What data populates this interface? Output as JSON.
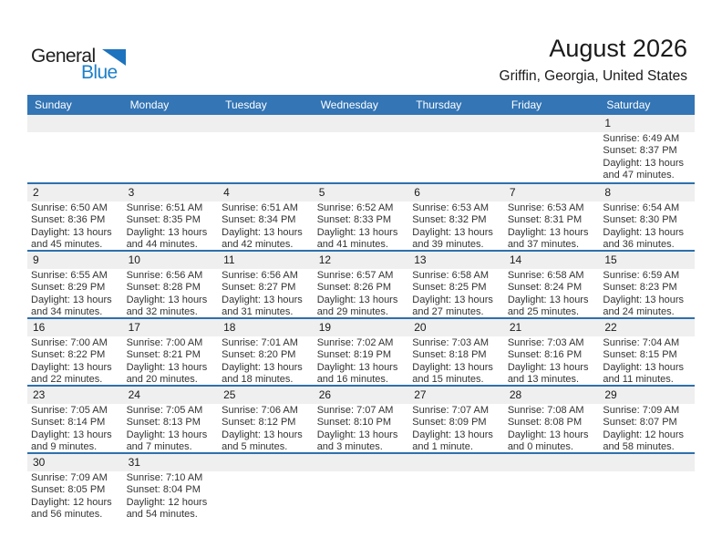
{
  "logo": {
    "general": "General",
    "blue": "Blue"
  },
  "title": "August 2026",
  "subtitle": "Griffin, Georgia, United States",
  "weekday_names": [
    "Sunday",
    "Monday",
    "Tuesday",
    "Wednesday",
    "Thursday",
    "Friday",
    "Saturday"
  ],
  "colors": {
    "header_bg": "#3375b5",
    "week_line": "#2d70ad",
    "day_band": "#efefef",
    "logo_triangle_blue": "#1e73be",
    "logo_text_blue": "#1d80c9"
  },
  "weeks": [
    [
      null,
      null,
      null,
      null,
      null,
      null,
      {
        "day": "1",
        "sunrise": "Sunrise: 6:49 AM",
        "sunset": "Sunset: 8:37 PM",
        "daylight": "Daylight: 13 hours and 47 minutes."
      }
    ],
    [
      {
        "day": "2",
        "sunrise": "Sunrise: 6:50 AM",
        "sunset": "Sunset: 8:36 PM",
        "daylight": "Daylight: 13 hours and 45 minutes."
      },
      {
        "day": "3",
        "sunrise": "Sunrise: 6:51 AM",
        "sunset": "Sunset: 8:35 PM",
        "daylight": "Daylight: 13 hours and 44 minutes."
      },
      {
        "day": "4",
        "sunrise": "Sunrise: 6:51 AM",
        "sunset": "Sunset: 8:34 PM",
        "daylight": "Daylight: 13 hours and 42 minutes."
      },
      {
        "day": "5",
        "sunrise": "Sunrise: 6:52 AM",
        "sunset": "Sunset: 8:33 PM",
        "daylight": "Daylight: 13 hours and 41 minutes."
      },
      {
        "day": "6",
        "sunrise": "Sunrise: 6:53 AM",
        "sunset": "Sunset: 8:32 PM",
        "daylight": "Daylight: 13 hours and 39 minutes."
      },
      {
        "day": "7",
        "sunrise": "Sunrise: 6:53 AM",
        "sunset": "Sunset: 8:31 PM",
        "daylight": "Daylight: 13 hours and 37 minutes."
      },
      {
        "day": "8",
        "sunrise": "Sunrise: 6:54 AM",
        "sunset": "Sunset: 8:30 PM",
        "daylight": "Daylight: 13 hours and 36 minutes."
      }
    ],
    [
      {
        "day": "9",
        "sunrise": "Sunrise: 6:55 AM",
        "sunset": "Sunset: 8:29 PM",
        "daylight": "Daylight: 13 hours and 34 minutes."
      },
      {
        "day": "10",
        "sunrise": "Sunrise: 6:56 AM",
        "sunset": "Sunset: 8:28 PM",
        "daylight": "Daylight: 13 hours and 32 minutes."
      },
      {
        "day": "11",
        "sunrise": "Sunrise: 6:56 AM",
        "sunset": "Sunset: 8:27 PM",
        "daylight": "Daylight: 13 hours and 31 minutes."
      },
      {
        "day": "12",
        "sunrise": "Sunrise: 6:57 AM",
        "sunset": "Sunset: 8:26 PM",
        "daylight": "Daylight: 13 hours and 29 minutes."
      },
      {
        "day": "13",
        "sunrise": "Sunrise: 6:58 AM",
        "sunset": "Sunset: 8:25 PM",
        "daylight": "Daylight: 13 hours and 27 minutes."
      },
      {
        "day": "14",
        "sunrise": "Sunrise: 6:58 AM",
        "sunset": "Sunset: 8:24 PM",
        "daylight": "Daylight: 13 hours and 25 minutes."
      },
      {
        "day": "15",
        "sunrise": "Sunrise: 6:59 AM",
        "sunset": "Sunset: 8:23 PM",
        "daylight": "Daylight: 13 hours and 24 minutes."
      }
    ],
    [
      {
        "day": "16",
        "sunrise": "Sunrise: 7:00 AM",
        "sunset": "Sunset: 8:22 PM",
        "daylight": "Daylight: 13 hours and 22 minutes."
      },
      {
        "day": "17",
        "sunrise": "Sunrise: 7:00 AM",
        "sunset": "Sunset: 8:21 PM",
        "daylight": "Daylight: 13 hours and 20 minutes."
      },
      {
        "day": "18",
        "sunrise": "Sunrise: 7:01 AM",
        "sunset": "Sunset: 8:20 PM",
        "daylight": "Daylight: 13 hours and 18 minutes."
      },
      {
        "day": "19",
        "sunrise": "Sunrise: 7:02 AM",
        "sunset": "Sunset: 8:19 PM",
        "daylight": "Daylight: 13 hours and 16 minutes."
      },
      {
        "day": "20",
        "sunrise": "Sunrise: 7:03 AM",
        "sunset": "Sunset: 8:18 PM",
        "daylight": "Daylight: 13 hours and 15 minutes."
      },
      {
        "day": "21",
        "sunrise": "Sunrise: 7:03 AM",
        "sunset": "Sunset: 8:16 PM",
        "daylight": "Daylight: 13 hours and 13 minutes."
      },
      {
        "day": "22",
        "sunrise": "Sunrise: 7:04 AM",
        "sunset": "Sunset: 8:15 PM",
        "daylight": "Daylight: 13 hours and 11 minutes."
      }
    ],
    [
      {
        "day": "23",
        "sunrise": "Sunrise: 7:05 AM",
        "sunset": "Sunset: 8:14 PM",
        "daylight": "Daylight: 13 hours and 9 minutes."
      },
      {
        "day": "24",
        "sunrise": "Sunrise: 7:05 AM",
        "sunset": "Sunset: 8:13 PM",
        "daylight": "Daylight: 13 hours and 7 minutes."
      },
      {
        "day": "25",
        "sunrise": "Sunrise: 7:06 AM",
        "sunset": "Sunset: 8:12 PM",
        "daylight": "Daylight: 13 hours and 5 minutes."
      },
      {
        "day": "26",
        "sunrise": "Sunrise: 7:07 AM",
        "sunset": "Sunset: 8:10 PM",
        "daylight": "Daylight: 13 hours and 3 minutes."
      },
      {
        "day": "27",
        "sunrise": "Sunrise: 7:07 AM",
        "sunset": "Sunset: 8:09 PM",
        "daylight": "Daylight: 13 hours and 1 minute."
      },
      {
        "day": "28",
        "sunrise": "Sunrise: 7:08 AM",
        "sunset": "Sunset: 8:08 PM",
        "daylight": "Daylight: 13 hours and 0 minutes."
      },
      {
        "day": "29",
        "sunrise": "Sunrise: 7:09 AM",
        "sunset": "Sunset: 8:07 PM",
        "daylight": "Daylight: 12 hours and 58 minutes."
      }
    ],
    [
      {
        "day": "30",
        "sunrise": "Sunrise: 7:09 AM",
        "sunset": "Sunset: 8:05 PM",
        "daylight": "Daylight: 12 hours and 56 minutes."
      },
      {
        "day": "31",
        "sunrise": "Sunrise: 7:10 AM",
        "sunset": "Sunset: 8:04 PM",
        "daylight": "Daylight: 12 hours and 54 minutes."
      },
      null,
      null,
      null,
      null,
      null
    ]
  ]
}
